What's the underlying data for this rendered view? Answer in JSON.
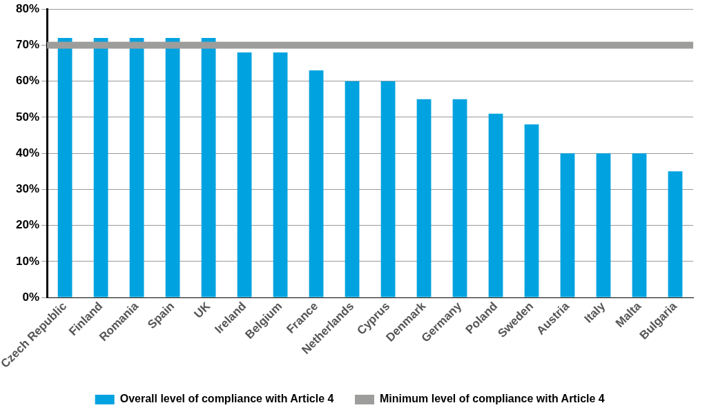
{
  "chart_data": {
    "type": "bar",
    "categories": [
      "Czech Republic",
      "Finland",
      "Romania",
      "Spain",
      "UK",
      "Ireland",
      "Belgium",
      "France",
      "Netherlands",
      "Cyprus",
      "Denmark",
      "Germany",
      "Poland",
      "Sweden",
      "Austria",
      "Italy",
      "Malta",
      "Bulgaria"
    ],
    "series": [
      {
        "name": "Overall level of compliance with Article 4",
        "color": "#00a3e0",
        "values": [
          72,
          72,
          72,
          72,
          72,
          68,
          68,
          63,
          60,
          60,
          55,
          55,
          51,
          48,
          40,
          40,
          40,
          35
        ]
      }
    ],
    "ylim": [
      0,
      80
    ],
    "yticks": [
      {
        "value": 0,
        "label": "0%"
      },
      {
        "value": 10,
        "label": "10%"
      },
      {
        "value": 20,
        "label": "20%"
      },
      {
        "value": 30,
        "label": "30%"
      },
      {
        "value": 40,
        "label": "40%"
      },
      {
        "value": 50,
        "label": "50%"
      },
      {
        "value": 60,
        "label": "60%"
      },
      {
        "value": 70,
        "label": "70%"
      },
      {
        "value": 80,
        "label": "80%"
      }
    ],
    "ref_lines": [
      {
        "axis": "y",
        "value": 70,
        "label": "Minimum level of compliance with Article 4",
        "color": "#9d9d9c"
      }
    ],
    "grid": "y",
    "legend": "bottom"
  }
}
